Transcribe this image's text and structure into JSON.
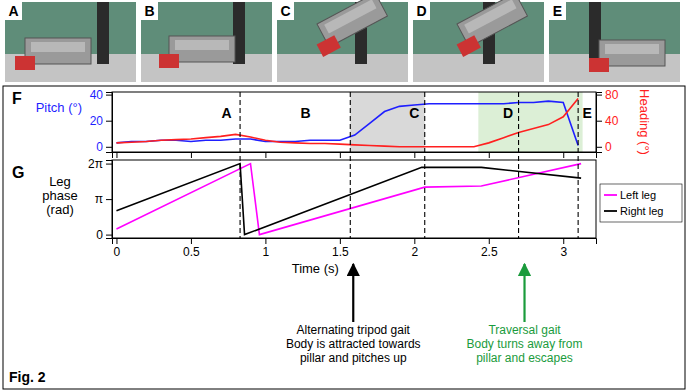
{
  "figure_label": "Fig. 2",
  "photo_panels": [
    "A",
    "B",
    "C",
    "D",
    "E"
  ],
  "chart_data": [
    {
      "type": "line",
      "panel": "F",
      "x": [
        0,
        0.1,
        0.2,
        0.3,
        0.4,
        0.5,
        0.6,
        0.7,
        0.8,
        0.9,
        1.0,
        1.1,
        1.2,
        1.3,
        1.4,
        1.5,
        1.6,
        1.7,
        1.8,
        1.9,
        2.0,
        2.1,
        2.2,
        2.3,
        2.4,
        2.5,
        2.6,
        2.7,
        2.8,
        2.9,
        3.0,
        3.1
      ],
      "series": [
        {
          "name": "Pitch (°)",
          "color": "#1f1fff",
          "values": [
            3,
            4,
            4,
            5,
            5,
            4,
            5,
            5,
            6,
            6,
            4,
            4,
            4,
            5,
            5,
            5,
            9,
            18,
            27,
            31,
            32,
            33,
            33,
            33,
            33,
            33,
            33,
            34,
            34,
            35,
            34,
            1
          ]
        },
        {
          "name": "Heading (°)",
          "color": "#ff2020",
          "axis": "y2",
          "values": [
            6,
            7,
            8,
            10,
            11,
            12,
            14,
            16,
            19,
            15,
            10,
            7,
            6,
            5,
            5,
            4,
            3,
            2,
            1,
            0,
            0,
            0,
            0,
            0,
            0,
            6,
            14,
            22,
            28,
            34,
            46,
            74
          ]
        }
      ],
      "xlim": [
        -0.03,
        3.22
      ],
      "xticks": [
        0,
        0.5,
        1,
        1.5,
        2,
        2.5,
        3
      ],
      "ylim": [
        -4,
        42
      ],
      "yticks": [
        0,
        20,
        40
      ],
      "y2lim": [
        -8,
        84
      ],
      "y2ticks": [
        0,
        40,
        80
      ],
      "tick_labels": "y",
      "regions": [
        {
          "from": 1.57,
          "to": 2.07,
          "color": "#d9d9d9"
        },
        {
          "from": 2.43,
          "to": 3.13,
          "color": "#dcefd6"
        }
      ],
      "event_lines": [
        0.83,
        1.57,
        2.07,
        2.7,
        3.1
      ],
      "event_labels": [
        {
          "x": 0.74,
          "label": "A"
        },
        {
          "x": 1.27,
          "label": "B"
        },
        {
          "x": 2.0,
          "label": "C"
        },
        {
          "x": 2.63,
          "label": "D"
        },
        {
          "x": 3.16,
          "label": "E"
        }
      ]
    },
    {
      "type": "line",
      "panel": "G",
      "series": [
        {
          "name": "Left leg",
          "color": "#ff00ff",
          "x": [
            0,
            0.9,
            0.96,
            2.07,
            2.45,
            3.12
          ],
          "values": [
            0.5,
            6.28,
            0,
            4.2,
            4.3,
            6.28
          ]
        },
        {
          "name": "Right leg",
          "color": "#000000",
          "x": [
            0,
            0.83,
            0.86,
            2.05,
            2.45,
            3.12
          ],
          "values": [
            2.1,
            6.28,
            0,
            5.95,
            5.95,
            5.0
          ]
        }
      ],
      "xlim": [
        -0.03,
        3.22
      ],
      "xticks": [
        0,
        0.5,
        1,
        1.5,
        2,
        2.5,
        3
      ],
      "xlabel": "Time (s)",
      "ylabel": "Leg phase (rad)",
      "ylim": [
        -0.3,
        6.6
      ],
      "yticks": [
        0,
        {
          "value": 3.1416,
          "label": "π"
        },
        {
          "value": 6.2832,
          "label": "2π"
        }
      ],
      "legend": "right",
      "annotations": [
        {
          "x": 1.59,
          "color": "#000000",
          "lines": [
            "Alternating tripod gait",
            "Body is attracted towards",
            "pillar and pitches up"
          ]
        },
        {
          "x": 2.74,
          "color": "#1a9b3c",
          "lines": [
            "Traversal gait",
            "Body turns away from",
            "pillar and escapes"
          ]
        }
      ]
    }
  ]
}
